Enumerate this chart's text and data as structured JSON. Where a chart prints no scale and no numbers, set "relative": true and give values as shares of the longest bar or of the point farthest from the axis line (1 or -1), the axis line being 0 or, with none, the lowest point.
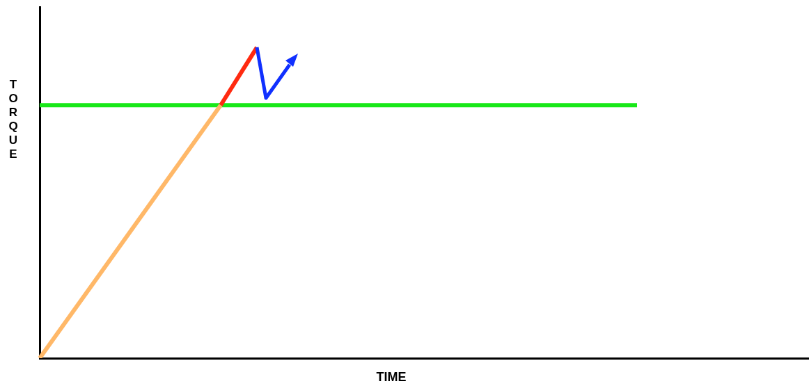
{
  "chart_data": {
    "type": "line",
    "relative": true,
    "xlabel": "TIME",
    "ylabel": "TORQUE",
    "grid": false,
    "legend": false,
    "marker": "none",
    "line_style": "solid",
    "categories": [
      null,
      null,
      null,
      null,
      null,
      null,
      null,
      null,
      null,
      null,
      null,
      null,
      null,
      null,
      null,
      null,
      null,
      null,
      null,
      null,
      null,
      null,
      null,
      null,
      null,
      null,
      null,
      null,
      null,
      null,
      null,
      null,
      null,
      null,
      null,
      null,
      null,
      null,
      null,
      null,
      null,
      null,
      null,
      null,
      null,
      null,
      null,
      null,
      null,
      null,
      null,
      null,
      null,
      null,
      null,
      null,
      null,
      null,
      null,
      null,
      null,
      null,
      null,
      null,
      null,
      null,
      null,
      null,
      null,
      null,
      null,
      null,
      null,
      null,
      null,
      null,
      null,
      null,
      null,
      null,
      null,
      null,
      null,
      null,
      null,
      null
    ],
    "series": [
      {
        "color": "#ffb868",
        "values": [
          0,
          null,
          null,
          null,
          null,
          null,
          null,
          null,
          null,
          null,
          null,
          null,
          null,
          null,
          null,
          null,
          null,
          null,
          null,
          null,
          0.814,
          null,
          null,
          null,
          null,
          null,
          null,
          null,
          null,
          null,
          null,
          null,
          null,
          null,
          null,
          null,
          null,
          null,
          null,
          null,
          null,
          null,
          null,
          null,
          null,
          null,
          null,
          null,
          null,
          null,
          null,
          null,
          null,
          null,
          null,
          null,
          null,
          null,
          null,
          null,
          null,
          null,
          null,
          null,
          null,
          null,
          null,
          null,
          null,
          null,
          null,
          null,
          null,
          null,
          null,
          null,
          null,
          null,
          null,
          null,
          null,
          null,
          null,
          null,
          null,
          null
        ]
      },
      {
        "color": "#ff2a10",
        "values": [
          null,
          null,
          null,
          null,
          null,
          null,
          null,
          null,
          null,
          null,
          null,
          null,
          null,
          null,
          null,
          null,
          null,
          null,
          null,
          null,
          0.814,
          null,
          null,
          null,
          1,
          null,
          null,
          null,
          null,
          null,
          null,
          null,
          null,
          null,
          null,
          null,
          null,
          null,
          null,
          null,
          null,
          null,
          null,
          null,
          null,
          null,
          null,
          null,
          null,
          null,
          null,
          null,
          null,
          null,
          null,
          null,
          null,
          null,
          null,
          null,
          null,
          null,
          null,
          null,
          null,
          null,
          null,
          null,
          null,
          null,
          null,
          null,
          null,
          null,
          null,
          null,
          null,
          null,
          null,
          null,
          null,
          null,
          null,
          null,
          null,
          null
        ]
      },
      {
        "color": "#18e818",
        "values": [
          0.814,
          null,
          null,
          null,
          null,
          null,
          null,
          null,
          null,
          null,
          null,
          null,
          null,
          null,
          null,
          null,
          null,
          null,
          null,
          null,
          null,
          null,
          null,
          null,
          null,
          null,
          null,
          null,
          null,
          null,
          null,
          null,
          null,
          null,
          null,
          null,
          null,
          null,
          null,
          null,
          null,
          null,
          null,
          null,
          null,
          null,
          null,
          null,
          null,
          null,
          null,
          null,
          null,
          null,
          null,
          null,
          null,
          null,
          null,
          null,
          null,
          null,
          null,
          null,
          null,
          null,
          0.814,
          null,
          null,
          null,
          null,
          null,
          null,
          null,
          null,
          null,
          null,
          null,
          null,
          null,
          null,
          null,
          null,
          null,
          null,
          null
        ]
      }
    ]
  }
}
